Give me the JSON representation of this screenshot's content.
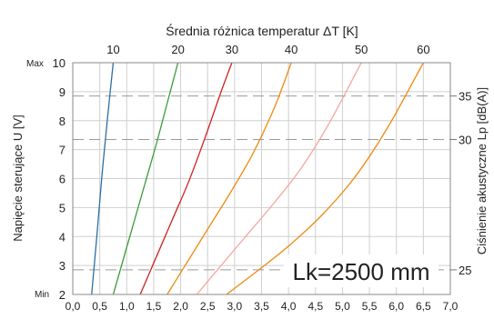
{
  "chart_data": {
    "type": "line",
    "title": "Średnia różnica temperatur ΔT [K]",
    "xlabel": "",
    "ylabel_left": "Napięcie sterujące U [V]",
    "ylabel_right": "Ciśnienie akustyczne Lp [dB(A)]",
    "annotation": "Lk=2500 mm",
    "x_ticks": [
      "0,0",
      "0,5",
      "1,0",
      "1,5",
      "2,0",
      "2,5",
      "3,0",
      "3,5",
      "4,0",
      "4,5",
      "5,0",
      "5,5",
      "6,0",
      "6,5",
      "7,0"
    ],
    "y_ticks": [
      "2",
      "3",
      "4",
      "5",
      "6",
      "7",
      "8",
      "9",
      "10"
    ],
    "y_min_label": "Min",
    "y_max_label": "Max",
    "y_right_ticks": [
      {
        "label": "25",
        "at_voltage": 2.85
      },
      {
        "label": "30",
        "at_voltage": 7.35
      },
      {
        "label": "35",
        "at_voltage": 8.85
      }
    ],
    "xlim": [
      0,
      7
    ],
    "ylim": [
      2,
      10
    ],
    "grid": true,
    "series": [
      {
        "name": "10",
        "color": "#2a6fa6",
        "x": [
          0.35,
          0.45,
          0.55,
          0.65,
          0.75
        ],
        "y": [
          2.0,
          4.1,
          6.3,
          8.2,
          10.0
        ]
      },
      {
        "name": "20",
        "color": "#3a9a3a",
        "x": [
          0.75,
          0.95,
          1.15,
          1.35,
          1.55,
          1.75,
          1.95
        ],
        "y": [
          2.0,
          3.3,
          4.6,
          5.9,
          7.2,
          8.6,
          10.0
        ]
      },
      {
        "name": "30",
        "color": "#cc2222",
        "x": [
          1.25,
          1.55,
          1.85,
          2.15,
          2.45,
          2.75,
          2.95
        ],
        "y": [
          2.0,
          3.3,
          4.6,
          5.9,
          7.4,
          9.0,
          10.0
        ]
      },
      {
        "name": "40",
        "color": "#ee8a11",
        "x": [
          1.75,
          2.15,
          2.55,
          2.95,
          3.35,
          3.75,
          4.05
        ],
        "y": [
          2.0,
          3.2,
          4.4,
          5.6,
          6.9,
          8.5,
          10.0
        ]
      },
      {
        "name": "50",
        "color": "#f4a6a0",
        "x": [
          2.3,
          2.75,
          3.25,
          3.75,
          4.25,
          4.75,
          5.35
        ],
        "y": [
          2.0,
          3.0,
          4.1,
          5.2,
          6.4,
          7.9,
          10.0
        ]
      },
      {
        "name": "60",
        "color": "#ee8a11",
        "x": [
          2.85,
          3.45,
          4.05,
          4.65,
          5.25,
          5.85,
          6.5
        ],
        "y": [
          2.0,
          2.85,
          3.75,
          4.8,
          6.1,
          7.8,
          10.0
        ]
      }
    ]
  }
}
